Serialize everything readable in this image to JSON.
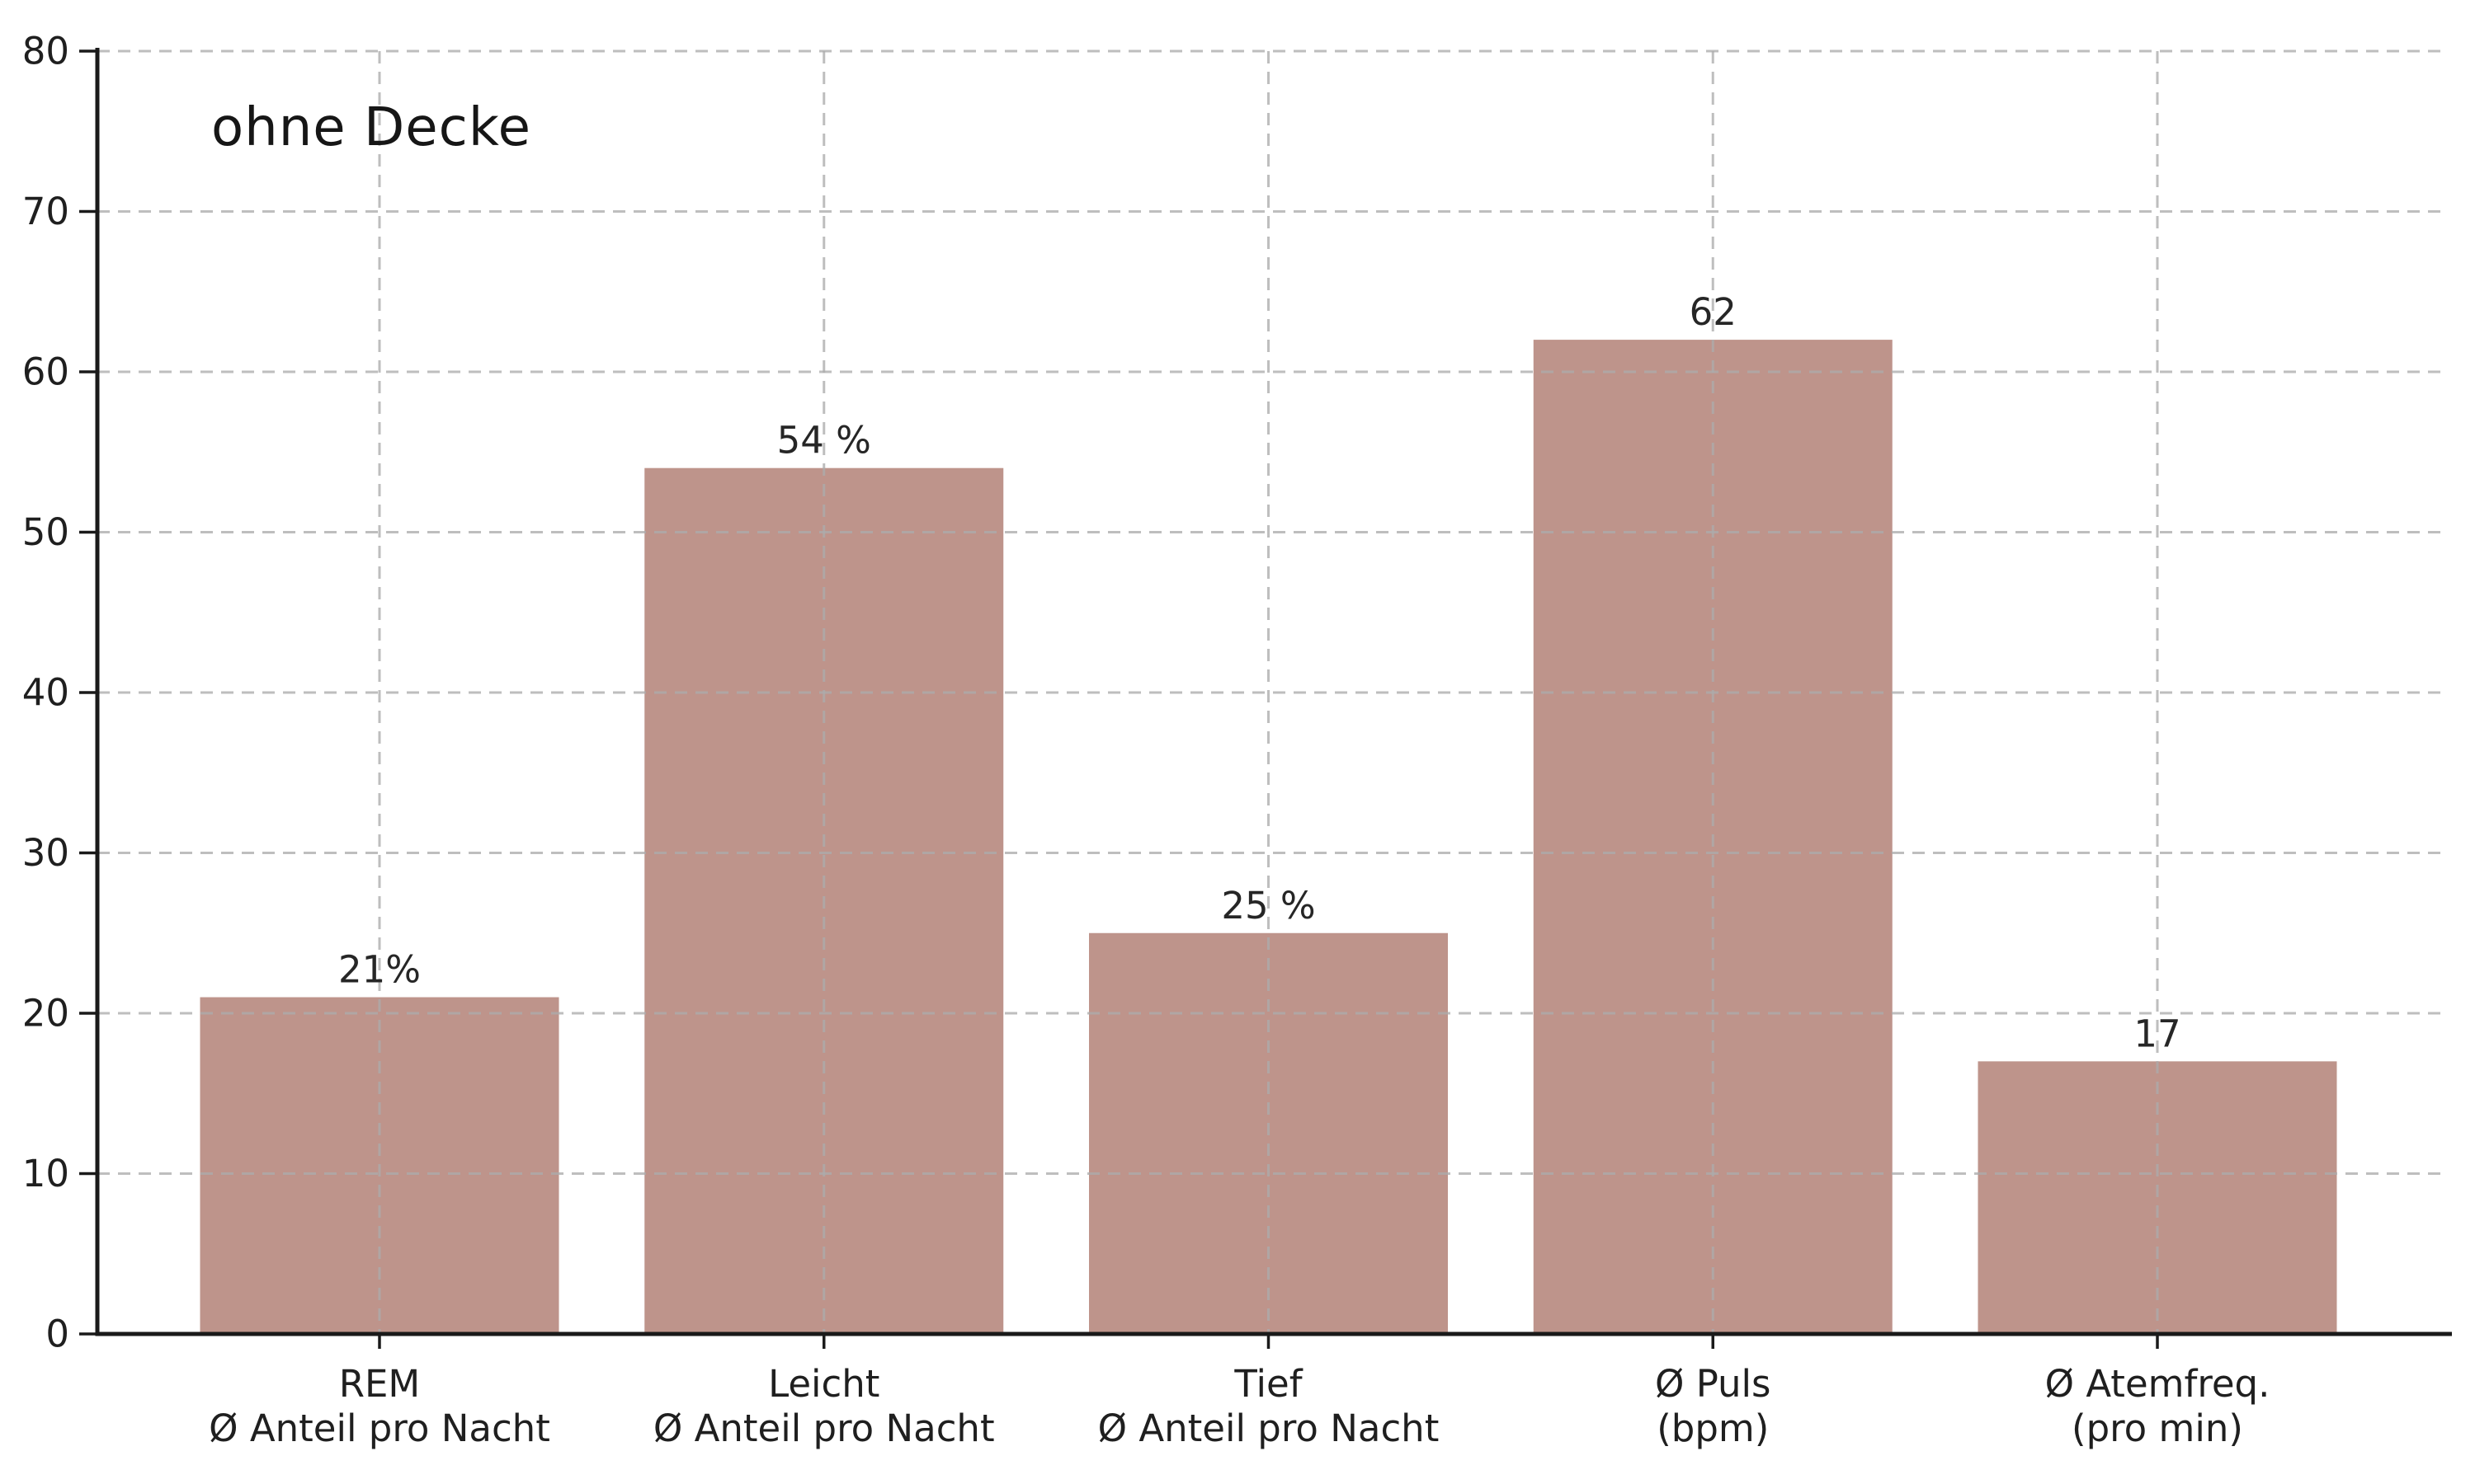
{
  "chart_data": {
    "type": "bar",
    "title": "ohne Decke",
    "categories": [
      [
        "REM",
        "Ø Anteil pro Nacht"
      ],
      [
        "Leicht",
        "Ø Anteil pro Nacht"
      ],
      [
        "Tief",
        "Ø Anteil pro Nacht"
      ],
      [
        "Ø Puls",
        "(bpm)"
      ],
      [
        "Ø Atemfreq.",
        "(pro min)"
      ]
    ],
    "values": [
      21,
      54,
      25,
      62,
      17
    ],
    "value_labels": [
      "21%",
      "54 %",
      "25 %",
      "62",
      "17"
    ],
    "xlabel": "",
    "ylabel": "",
    "ylim": [
      0,
      80
    ],
    "yticks": [
      0,
      10,
      20,
      30,
      40,
      50,
      60,
      70,
      80
    ],
    "grid": "dashed gridlines on both axes, drawn over bars",
    "legend_position": "none",
    "bar_color": "#be948b",
    "axis_color": "#1a1a1a",
    "grid_color": "#c6c6c6",
    "text_color": "#1f1f1f"
  }
}
